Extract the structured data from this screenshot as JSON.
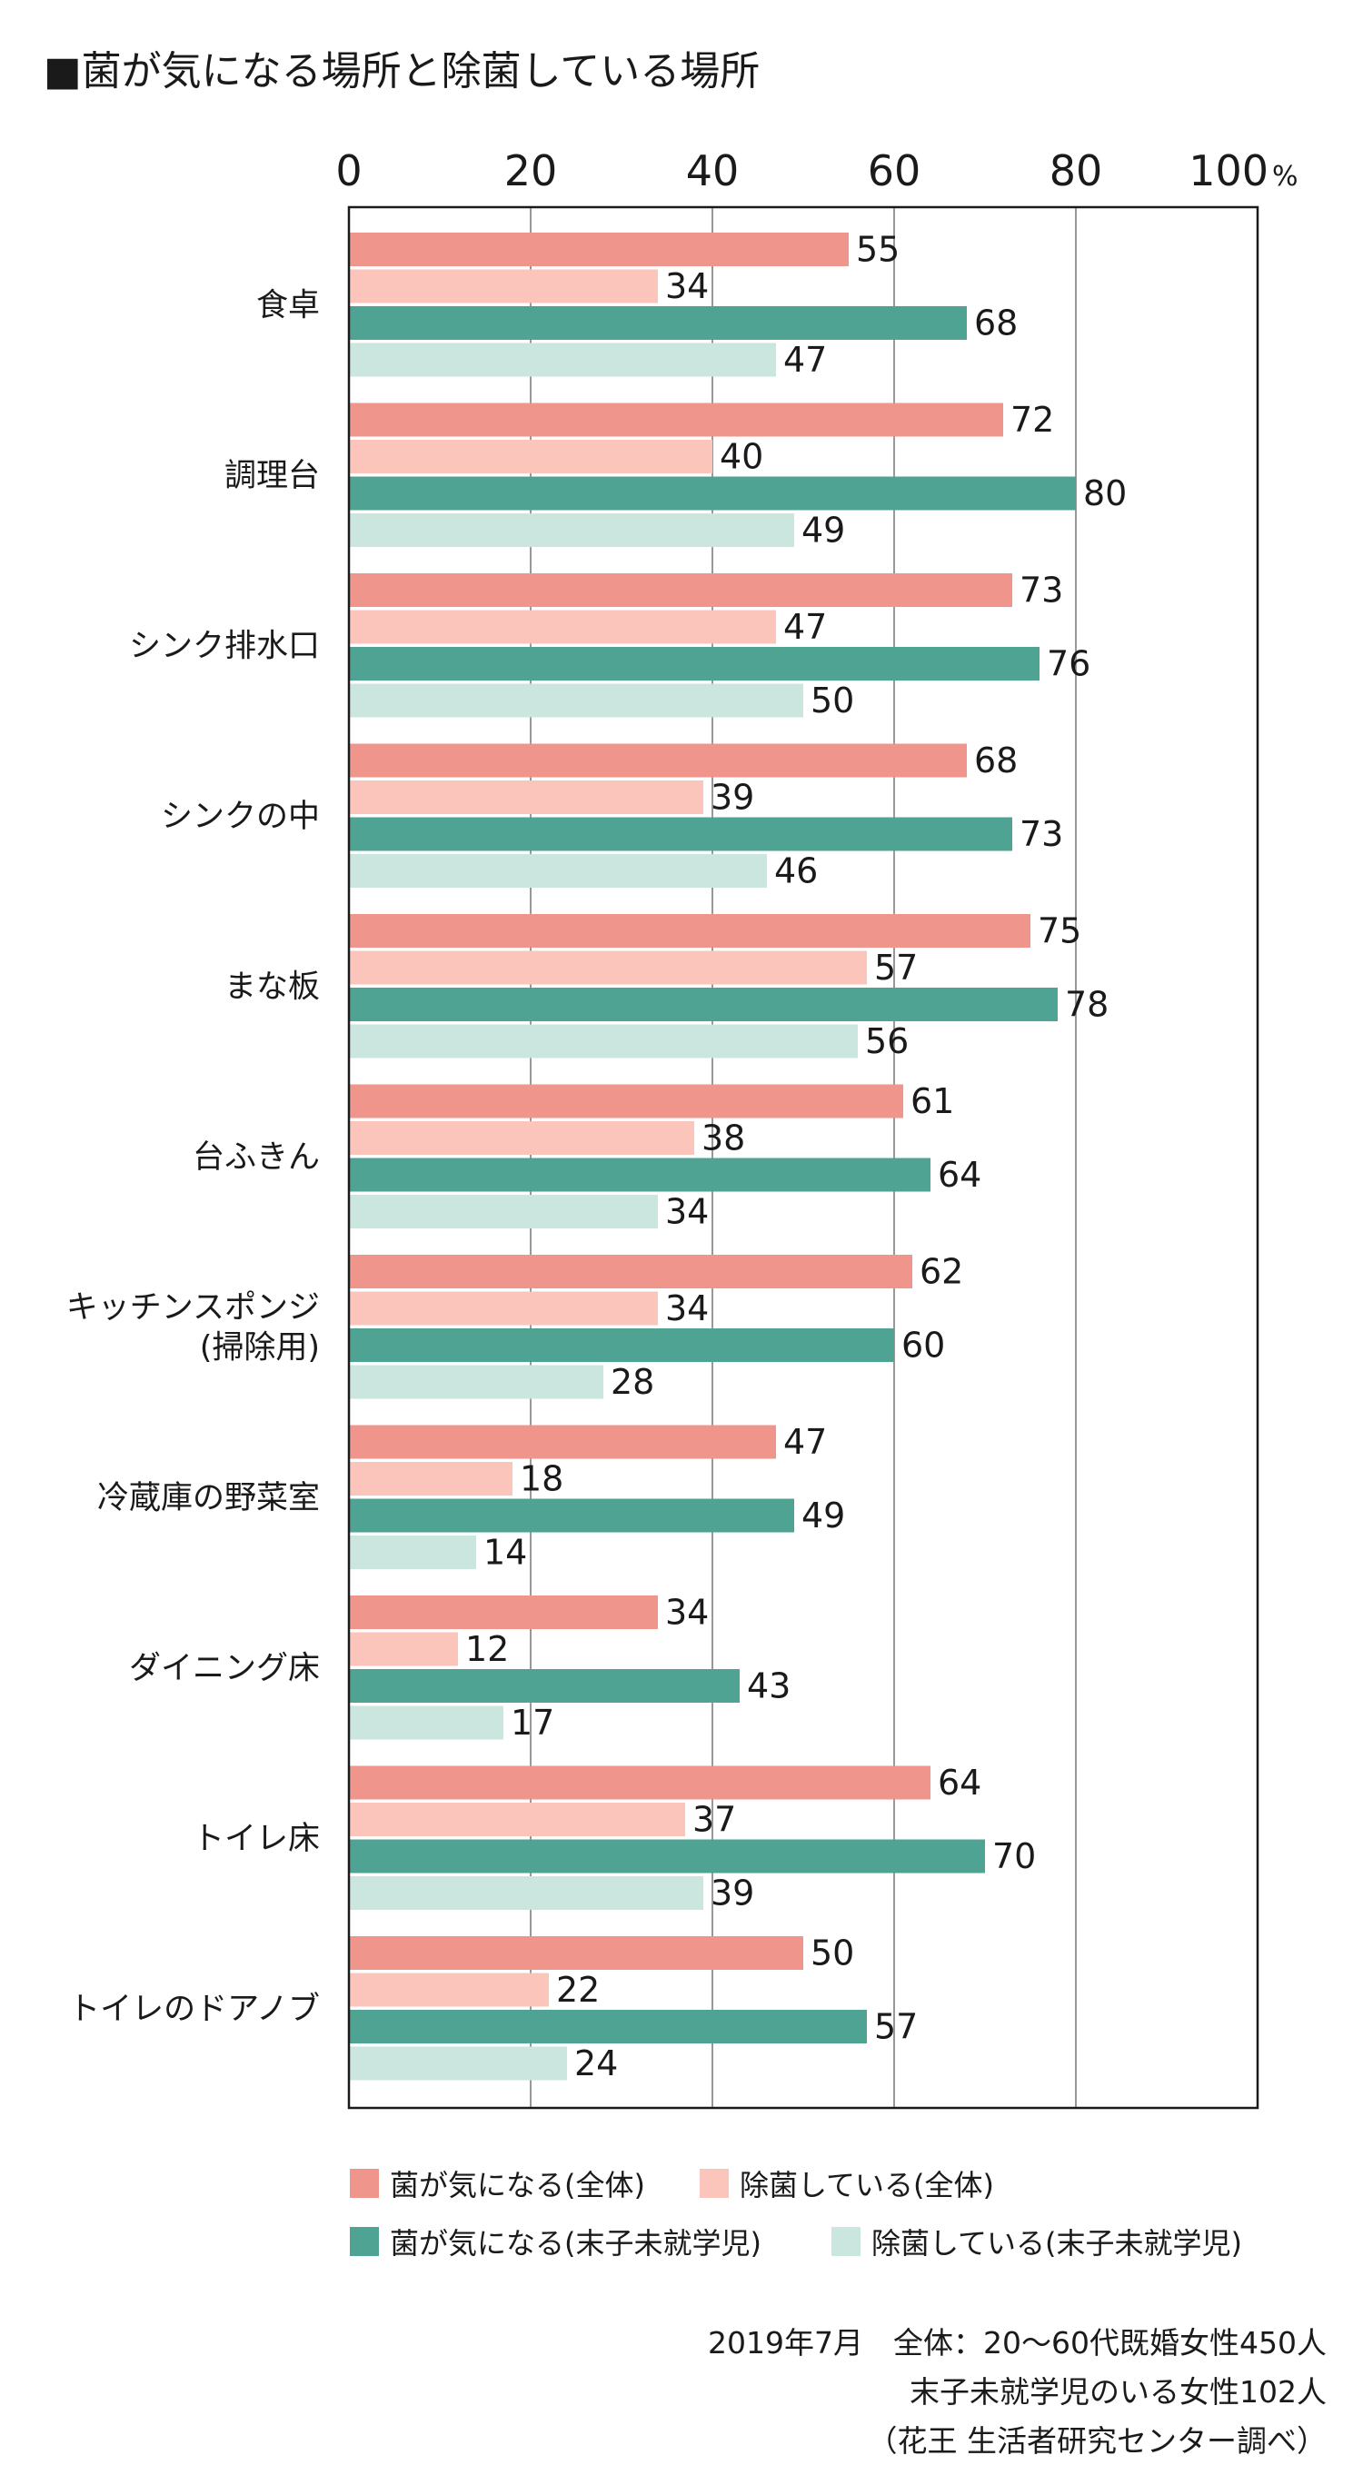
{
  "title": "■菌が気になる場所と除菌している場所",
  "chart_data": {
    "type": "bar",
    "orientation": "horizontal",
    "title": "■菌が気になる場所と除菌している場所",
    "x_ticks": [
      "0",
      "20",
      "40",
      "60",
      "80",
      "100"
    ],
    "x_unit": "%",
    "xlim": [
      0,
      100
    ],
    "grid": true,
    "categories": [
      "食卓",
      "調理台",
      "シンク排水口",
      "シンクの中",
      "まな板",
      "台ふきん",
      "キッチンスポンジ\n(掃除用)",
      "冷蔵庫の野菜室",
      "ダイニング床",
      "トイレ床",
      "トイレのドアノブ"
    ],
    "series": [
      {
        "name": "菌が気になる(全体)",
        "color": "#f0958c",
        "values": [
          55,
          72,
          73,
          68,
          75,
          61,
          62,
          47,
          34,
          64,
          50
        ]
      },
      {
        "name": "除菌している(全体)",
        "color": "#fcc5bc",
        "values": [
          34,
          40,
          47,
          39,
          57,
          38,
          34,
          18,
          12,
          37,
          22
        ]
      },
      {
        "name": "菌が気になる(末子未就学児)",
        "color": "#4fa393",
        "values": [
          68,
          80,
          76,
          73,
          78,
          64,
          60,
          49,
          43,
          70,
          57
        ]
      },
      {
        "name": "除菌している(末子未就学児)",
        "color": "#cbe5df",
        "values": [
          47,
          49,
          50,
          46,
          56,
          34,
          28,
          14,
          17,
          39,
          24
        ]
      }
    ],
    "legend_position": "bottom"
  },
  "notes": [
    "2019年7月　全体：20〜60代既婚女性450人",
    "末子未就学児のいる女性102人",
    "（花王 生活者研究センター調べ）"
  ]
}
